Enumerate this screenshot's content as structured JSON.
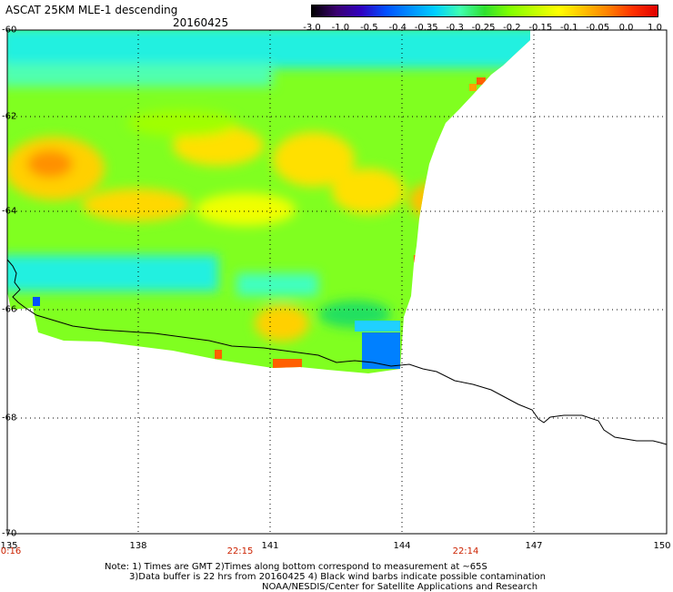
{
  "header": {
    "title": "ASCAT 25KM MLE-1 descending",
    "date": "20160425"
  },
  "colorbar": {
    "labels": [
      "-3.0",
      "-1.0",
      "-0.5",
      "-0.4",
      "-0.35",
      "-0.3",
      "-0.25",
      "-0.2",
      "-0.15",
      "-0.1",
      "-0.05",
      "0.0",
      "1.0"
    ],
    "colors": [
      "#000000",
      "#3a0070",
      "#3000c0",
      "#0050ff",
      "#0090ff",
      "#00d0ff",
      "#40ffb0",
      "#30e030",
      "#80ff00",
      "#c0ff00",
      "#ffff00",
      "#ffc000",
      "#ff8000",
      "#ff3000",
      "#e00000"
    ]
  },
  "axes": {
    "lat_labels": [
      "-60",
      "-62",
      "-64",
      "-66",
      "-68",
      "-70"
    ],
    "lon_labels": [
      "135",
      "138",
      "141",
      "144",
      "147",
      "150"
    ],
    "time_labels": [
      "0:16",
      "22:15",
      "22:14"
    ]
  },
  "notes": [
    "Note: 1) Times are GMT 2)Times along bottom correspond to measurement at ~65S",
    "3)Data buffer is 22 hrs from 20160425 4) Black wind barbs indicate possible contamination",
    "NOAA/NESDIS/Center for Satellite Applications and Research"
  ]
}
